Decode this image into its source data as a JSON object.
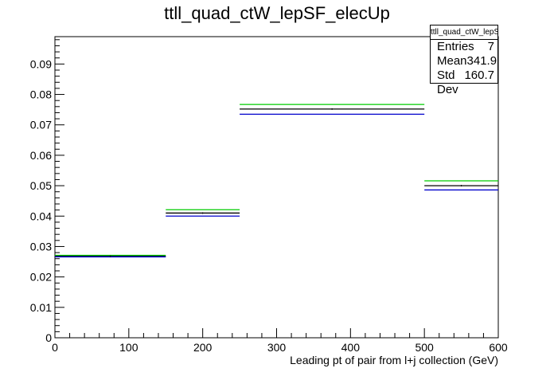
{
  "chart_data": {
    "type": "bar",
    "style": "histogram-step",
    "title": "ttll_quad_ctW_lepSF_elecUp",
    "xlabel": "Leading pt of pair from l+j collection (GeV)",
    "ylabel": "",
    "xlim": [
      0,
      600
    ],
    "ylim": [
      0,
      0.099
    ],
    "x_ticks": [
      0,
      100,
      200,
      300,
      400,
      500,
      600
    ],
    "y_ticks": [
      0,
      0.01,
      0.02,
      0.03,
      0.04,
      0.05,
      0.06,
      0.07,
      0.08,
      0.09
    ],
    "x_tick_labels": [
      "0",
      "100",
      "200",
      "300",
      "400",
      "500",
      "600"
    ],
    "y_tick_labels": [
      "0",
      "0.01",
      "0.02",
      "0.03",
      "0.04",
      "0.05",
      "0.06",
      "0.07",
      "0.08",
      "0.09"
    ],
    "bin_edges": [
      0,
      150,
      250,
      500,
      600
    ],
    "series": [
      {
        "color": "#00cc00",
        "values": [
          0.0271,
          0.0421,
          0.0767,
          0.0516
        ]
      },
      {
        "color": "#000000",
        "values": [
          0.0268,
          0.041,
          0.0752,
          0.05
        ]
      },
      {
        "color": "#0000cc",
        "values": [
          0.0266,
          0.04,
          0.0735,
          0.0486
        ]
      }
    ],
    "grid": false,
    "legend": "none",
    "stats": {
      "title": "ttll_quad_ctW_lepSF_elecUp",
      "rows": [
        {
          "label": "Entries",
          "value": "7"
        },
        {
          "label": "Mean",
          "value": "341.9"
        },
        {
          "label": "Std Dev",
          "value": "160.7"
        }
      ]
    }
  }
}
